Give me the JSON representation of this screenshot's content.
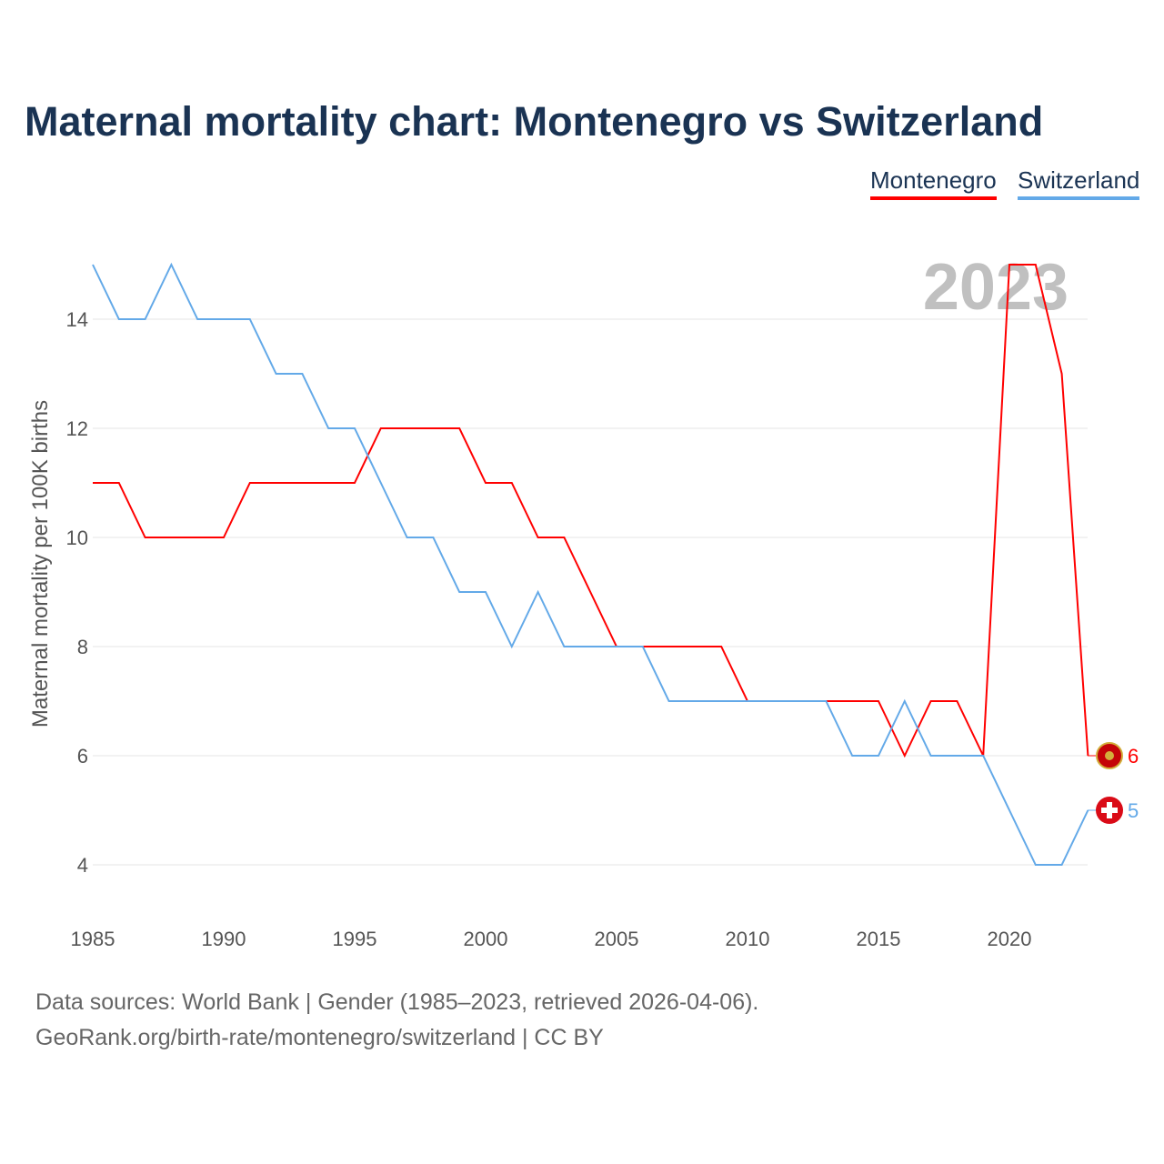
{
  "title": "Maternal mortality chart: Montenegro vs Switzerland",
  "sources": [
    "Data sources: World Bank | Gender (1985–2023, retrieved 2026-04-06).",
    "GeoRank.org/birth-rate/montenegro/switzerland | CC BY"
  ],
  "chart_data": {
    "type": "line",
    "title": "Maternal mortality chart: Montenegro vs Switzerland",
    "ylabel": "Maternal mortality per 100K births",
    "xlabel": "",
    "year_label": "2023",
    "xlim": [
      1985,
      2023
    ],
    "ylim": [
      4,
      15
    ],
    "xticks": [
      "1985",
      "1990",
      "1995",
      "2000",
      "2005",
      "2010",
      "2015",
      "2020"
    ],
    "yticks": [
      "4",
      "6",
      "8",
      "10",
      "12",
      "14"
    ],
    "grid": true,
    "legend": "top-right",
    "x": [
      1985,
      1986,
      1987,
      1988,
      1989,
      1990,
      1991,
      1992,
      1993,
      1994,
      1995,
      1996,
      1997,
      1998,
      1999,
      2000,
      2001,
      2002,
      2003,
      2004,
      2005,
      2006,
      2007,
      2008,
      2009,
      2010,
      2011,
      2012,
      2013,
      2014,
      2015,
      2016,
      2017,
      2018,
      2019,
      2020,
      2021,
      2022,
      2023
    ],
    "series": [
      {
        "name": "Montenegro",
        "color": "#ff0000",
        "end_label": "6",
        "values": [
          11,
          11,
          10,
          10,
          10,
          10,
          11,
          11,
          11,
          11,
          11,
          12,
          12,
          12,
          12,
          11,
          11,
          10,
          10,
          9,
          8,
          8,
          8,
          8,
          8,
          7,
          7,
          7,
          7,
          7,
          7,
          6,
          7,
          7,
          6,
          15,
          15,
          13,
          6
        ]
      },
      {
        "name": "Switzerland",
        "color": "#63a9e8",
        "end_label": "5",
        "values": [
          15,
          14,
          14,
          15,
          14,
          14,
          14,
          13,
          13,
          12,
          12,
          11,
          10,
          10,
          9,
          9,
          8,
          9,
          8,
          8,
          8,
          8,
          7,
          7,
          7,
          7,
          7,
          7,
          7,
          6,
          6,
          7,
          6,
          6,
          6,
          5,
          4,
          4,
          5
        ]
      }
    ]
  }
}
